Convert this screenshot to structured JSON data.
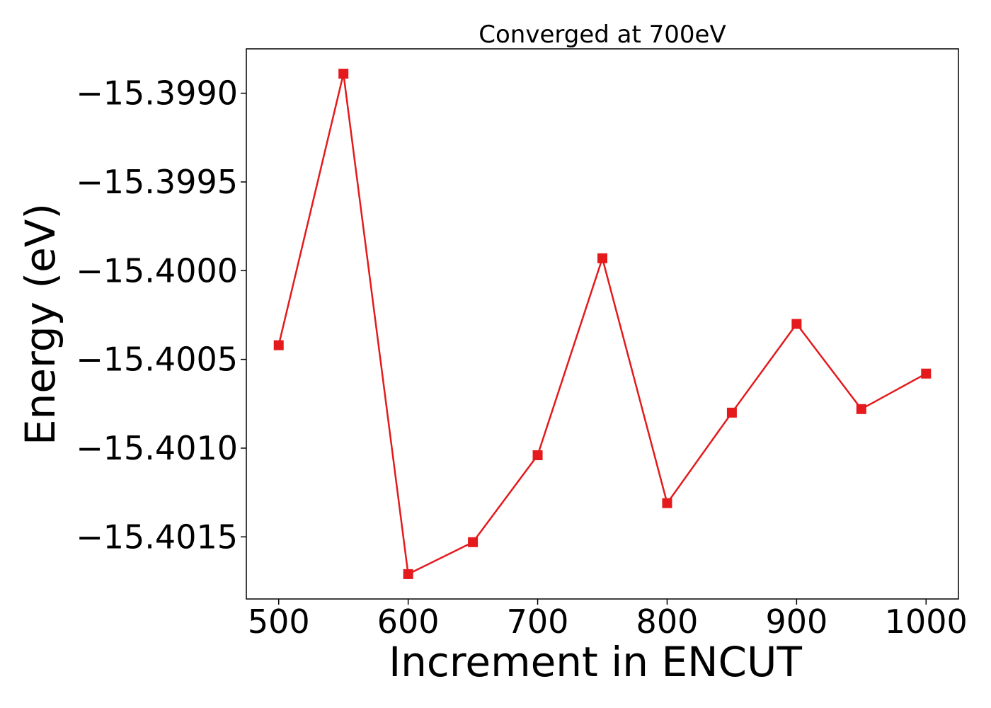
{
  "chart_data": {
    "type": "line",
    "title": "Converged at 700eV",
    "xlabel": "Increment in ENCUT",
    "ylabel": "Energy (eV)",
    "xlim": [
      475,
      1025
    ],
    "ylim": [
      -15.40185,
      -15.39875
    ],
    "xticks": [
      500,
      600,
      700,
      800,
      900,
      1000
    ],
    "xtick_labels": [
      "500",
      "600",
      "700",
      "800",
      "900",
      "1000"
    ],
    "yticks": [
      -15.399,
      -15.3995,
      -15.4,
      -15.4005,
      -15.401,
      -15.4015
    ],
    "ytick_labels": [
      "−15.3990",
      "−15.3995",
      "−15.4000",
      "−15.4005",
      "−15.4010",
      "−15.4015"
    ],
    "grid": false,
    "series": [
      {
        "color": "#e41a1c",
        "marker": "square",
        "x": [
          500,
          550,
          600,
          650,
          700,
          750,
          800,
          850,
          900,
          950,
          1000
        ],
        "y": [
          -15.40042,
          -15.39889,
          -15.40171,
          -15.40153,
          -15.40104,
          -15.39993,
          -15.40131,
          -15.4008,
          -15.4003,
          -15.40078,
          -15.40058
        ]
      }
    ]
  }
}
